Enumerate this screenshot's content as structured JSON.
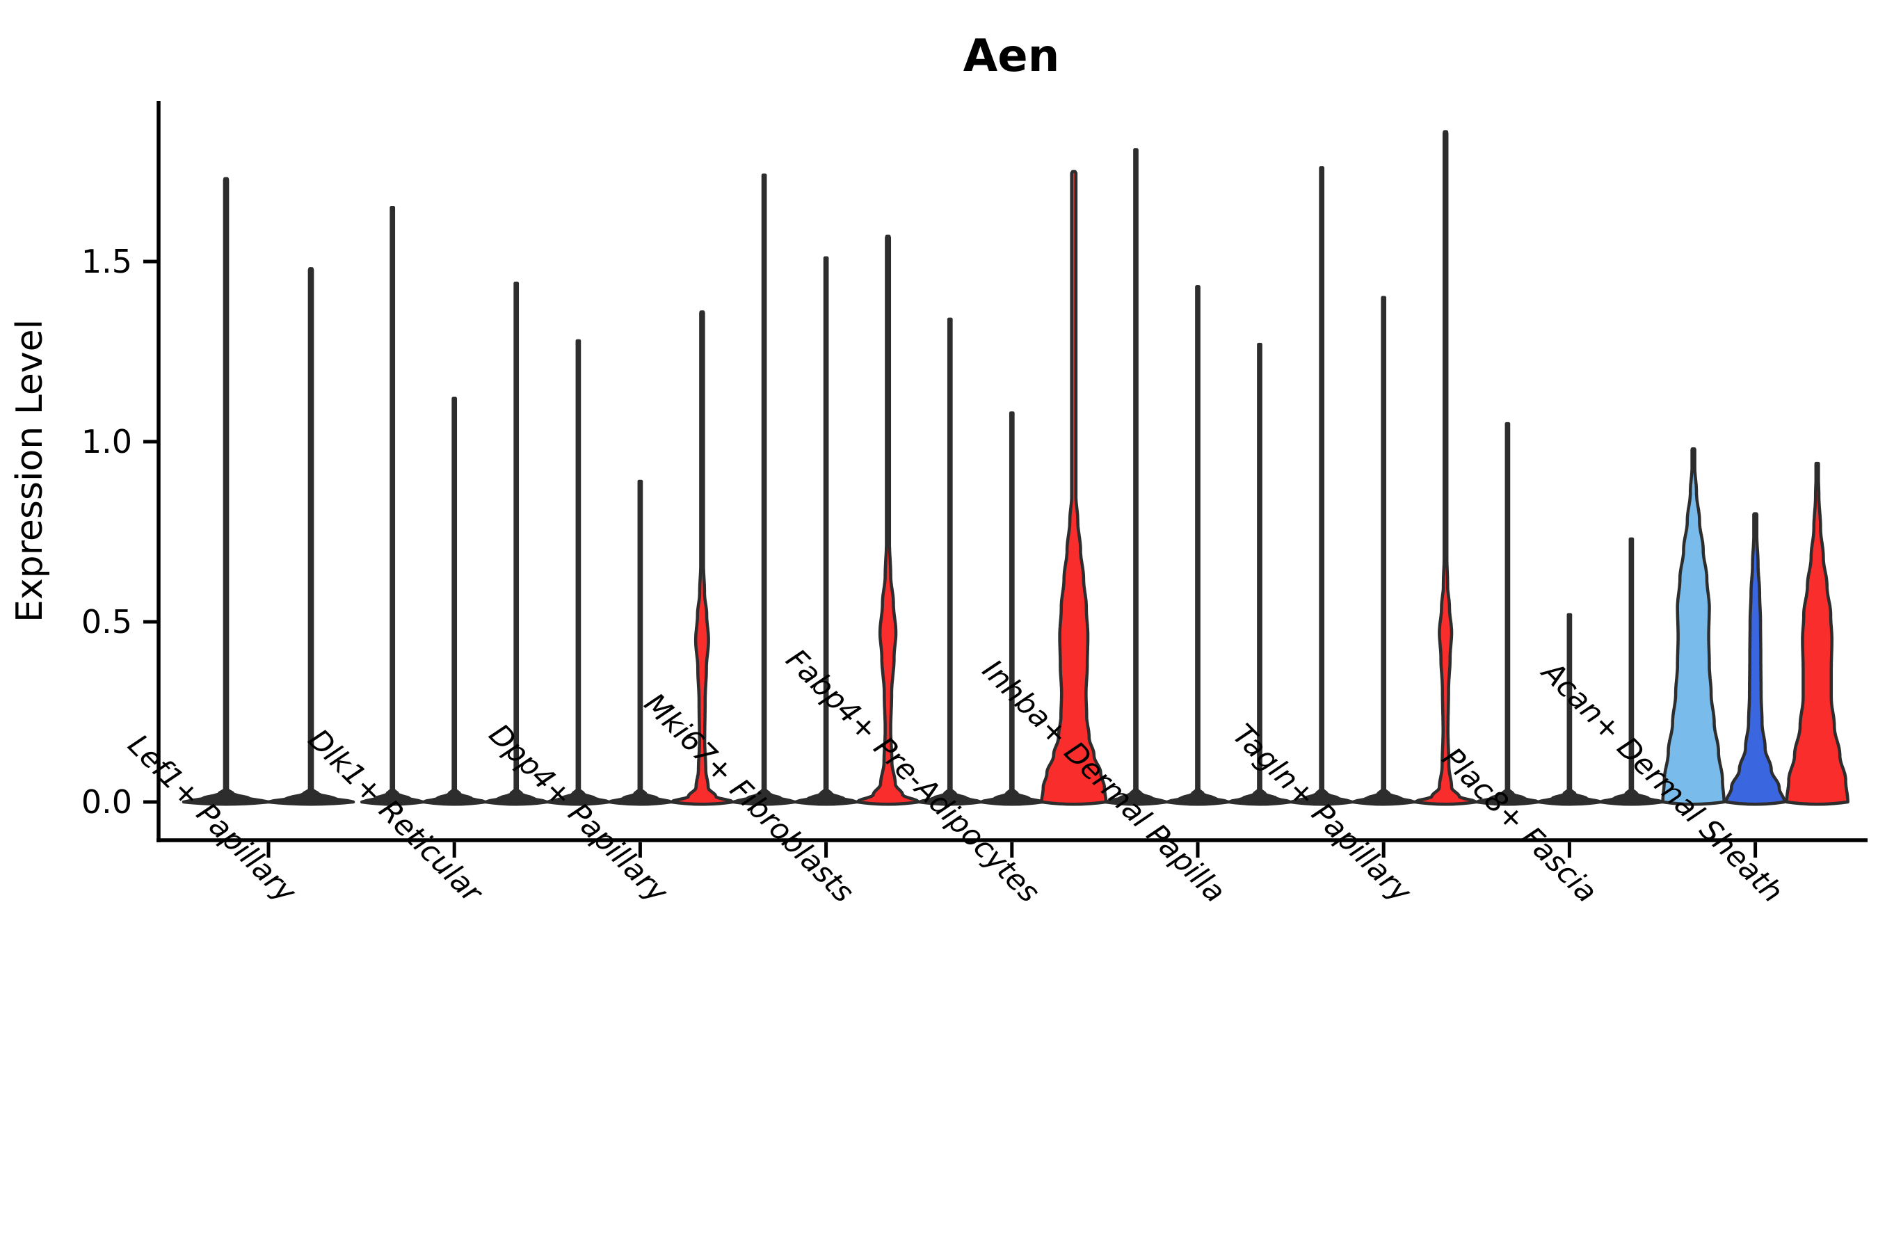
{
  "title": "Aen",
  "y_axis": {
    "label": "Expression Level",
    "tick_labels": [
      "0.0",
      "0.5",
      "1.0",
      "1.5"
    ],
    "tick_values": [
      0.0,
      0.5,
      1.0,
      1.5
    ],
    "ylim": [
      0,
      1.95
    ]
  },
  "colors": {
    "outline": "#2d2d2d",
    "thin_violin": "#2d2d2d",
    "red": "#FA2D2D",
    "skyblue": "#79BCEC",
    "royalblue": "#3A66E0",
    "axis": "#000000",
    "background": "#ffffff"
  },
  "chart_data": {
    "type": "violin",
    "title": "Aen",
    "ylabel": "Expression Level",
    "xlabel": "",
    "ylim": [
      0,
      1.95
    ],
    "yticks": [
      0.0,
      0.5,
      1.0,
      1.5
    ],
    "grid": false,
    "legend": false,
    "categories": [
      "Lef1+ Papillary",
      "Dlk1+ Reticular",
      "Dpp4+ Papillary",
      "Mki67+ Fibroblasts",
      "Fabp4+ Pre-Adipocytes",
      "Inhba+ Dermal Papilla",
      "Tagln+ Papillary",
      "Plac8+ Fascia",
      "Acan+ Dermal Sheath"
    ],
    "profiles": {
      "thin": [
        [
          0,
          1.0
        ],
        [
          0.01,
          0.55
        ],
        [
          0.022,
          0.18
        ],
        [
          0.035,
          0.034
        ]
      ],
      "sliver_a": [
        [
          0,
          1.0
        ],
        [
          0.015,
          0.45
        ],
        [
          0.04,
          0.2
        ],
        [
          0.09,
          0.12
        ],
        [
          0.17,
          0.085
        ],
        [
          0.28,
          0.1
        ],
        [
          0.37,
          0.14
        ],
        [
          0.45,
          0.21
        ],
        [
          0.52,
          0.15
        ],
        [
          0.58,
          0.08
        ],
        [
          0.66,
          0.045
        ]
      ],
      "sliver_b": [
        [
          0,
          1.0
        ],
        [
          0.02,
          0.48
        ],
        [
          0.05,
          0.24
        ],
        [
          0.11,
          0.13
        ],
        [
          0.2,
          0.09
        ],
        [
          0.3,
          0.12
        ],
        [
          0.4,
          0.2
        ],
        [
          0.47,
          0.26
        ],
        [
          0.55,
          0.18
        ],
        [
          0.63,
          0.09
        ],
        [
          0.72,
          0.05
        ]
      ],
      "sliver_c": [
        [
          0,
          1.0
        ],
        [
          0.015,
          0.45
        ],
        [
          0.04,
          0.2
        ],
        [
          0.1,
          0.11
        ],
        [
          0.2,
          0.08
        ],
        [
          0.31,
          0.1
        ],
        [
          0.4,
          0.15
        ],
        [
          0.47,
          0.2
        ],
        [
          0.54,
          0.13
        ],
        [
          0.6,
          0.07
        ],
        [
          0.68,
          0.045
        ]
      ],
      "red_big": [
        [
          0,
          1.05
        ],
        [
          0.04,
          1.0
        ],
        [
          0.08,
          0.88
        ],
        [
          0.13,
          0.66
        ],
        [
          0.18,
          0.5
        ],
        [
          0.24,
          0.42
        ],
        [
          0.3,
          0.4
        ],
        [
          0.38,
          0.44
        ],
        [
          0.46,
          0.46
        ],
        [
          0.54,
          0.41
        ],
        [
          0.62,
          0.32
        ],
        [
          0.7,
          0.22
        ],
        [
          0.78,
          0.13
        ],
        [
          0.85,
          0.07
        ]
      ],
      "sky": [
        [
          0,
          1.0
        ],
        [
          0.06,
          0.95
        ],
        [
          0.14,
          0.82
        ],
        [
          0.22,
          0.68
        ],
        [
          0.3,
          0.58
        ],
        [
          0.38,
          0.52
        ],
        [
          0.46,
          0.5
        ],
        [
          0.54,
          0.52
        ],
        [
          0.62,
          0.44
        ],
        [
          0.7,
          0.32
        ],
        [
          0.78,
          0.2
        ],
        [
          0.86,
          0.1
        ],
        [
          0.93,
          0.045
        ]
      ],
      "royal": [
        [
          0,
          0.95
        ],
        [
          0.04,
          0.78
        ],
        [
          0.09,
          0.52
        ],
        [
          0.15,
          0.32
        ],
        [
          0.22,
          0.22
        ],
        [
          0.3,
          0.19
        ],
        [
          0.4,
          0.18
        ],
        [
          0.5,
          0.17
        ],
        [
          0.58,
          0.14
        ],
        [
          0.66,
          0.09
        ],
        [
          0.74,
          0.05
        ]
      ],
      "red_mid": [
        [
          0,
          1.0
        ],
        [
          0.06,
          0.93
        ],
        [
          0.13,
          0.74
        ],
        [
          0.21,
          0.56
        ],
        [
          0.29,
          0.46
        ],
        [
          0.37,
          0.46
        ],
        [
          0.45,
          0.48
        ],
        [
          0.52,
          0.44
        ],
        [
          0.6,
          0.32
        ],
        [
          0.68,
          0.2
        ],
        [
          0.76,
          0.11
        ],
        [
          0.85,
          0.055
        ],
        [
          0.9,
          0.04
        ]
      ]
    },
    "groups": [
      {
        "category": "Lef1+ Papillary",
        "violins": [
          {
            "max_expression": 1.73,
            "fill": "#2d2d2d",
            "profile": "thin"
          },
          {
            "max_expression": 1.48,
            "fill": "#2d2d2d",
            "profile": "thin"
          }
        ]
      },
      {
        "category": "Dlk1+ Reticular",
        "violins": [
          {
            "max_expression": 1.65,
            "fill": "#2d2d2d",
            "profile": "thin"
          },
          {
            "max_expression": 1.12,
            "fill": "#2d2d2d",
            "profile": "thin"
          },
          {
            "max_expression": 1.44,
            "fill": "#2d2d2d",
            "profile": "thin"
          }
        ]
      },
      {
        "category": "Dpp4+ Papillary",
        "violins": [
          {
            "max_expression": 1.28,
            "fill": "#2d2d2d",
            "profile": "thin"
          },
          {
            "max_expression": 0.89,
            "fill": "#2d2d2d",
            "profile": "thin"
          },
          {
            "max_expression": 1.36,
            "fill": "#FA2D2D",
            "profile": "sliver_a"
          }
        ]
      },
      {
        "category": "Mki67+ Fibroblasts",
        "violins": [
          {
            "max_expression": 1.74,
            "fill": "#2d2d2d",
            "profile": "thin"
          },
          {
            "max_expression": 1.51,
            "fill": "#2d2d2d",
            "profile": "thin"
          },
          {
            "max_expression": 1.57,
            "fill": "#FA2D2D",
            "profile": "sliver_b"
          }
        ]
      },
      {
        "category": "Fabp4+ Pre-Adipocytes",
        "violins": [
          {
            "max_expression": 1.34,
            "fill": "#2d2d2d",
            "profile": "thin"
          },
          {
            "max_expression": 1.08,
            "fill": "#2d2d2d",
            "profile": "thin"
          },
          {
            "max_expression": 1.75,
            "fill": "#FA2D2D",
            "profile": "red_big"
          }
        ]
      },
      {
        "category": "Inhba+ Dermal Papilla",
        "violins": [
          {
            "max_expression": 1.81,
            "fill": "#2d2d2d",
            "profile": "thin"
          },
          {
            "max_expression": 1.43,
            "fill": "#2d2d2d",
            "profile": "thin"
          },
          {
            "max_expression": 1.27,
            "fill": "#2d2d2d",
            "profile": "thin"
          }
        ]
      },
      {
        "category": "Tagln+ Papillary",
        "violins": [
          {
            "max_expression": 1.76,
            "fill": "#2d2d2d",
            "profile": "thin"
          },
          {
            "max_expression": 1.4,
            "fill": "#2d2d2d",
            "profile": "thin"
          },
          {
            "max_expression": 1.86,
            "fill": "#FA2D2D",
            "profile": "sliver_c"
          }
        ]
      },
      {
        "category": "Plac8+ Fascia",
        "violins": [
          {
            "max_expression": 1.05,
            "fill": "#2d2d2d",
            "profile": "thin"
          },
          {
            "max_expression": 0.52,
            "fill": "#2d2d2d",
            "profile": "thin"
          },
          {
            "max_expression": 0.73,
            "fill": "#2d2d2d",
            "profile": "thin"
          }
        ]
      },
      {
        "category": "Acan+ Dermal Sheath",
        "violins": [
          {
            "max_expression": 0.98,
            "fill": "#79BCEC",
            "profile": "sky"
          },
          {
            "max_expression": 0.8,
            "fill": "#3A66E0",
            "profile": "royal"
          },
          {
            "max_expression": 0.94,
            "fill": "#FA2D2D",
            "profile": "red_mid"
          }
        ]
      }
    ]
  }
}
